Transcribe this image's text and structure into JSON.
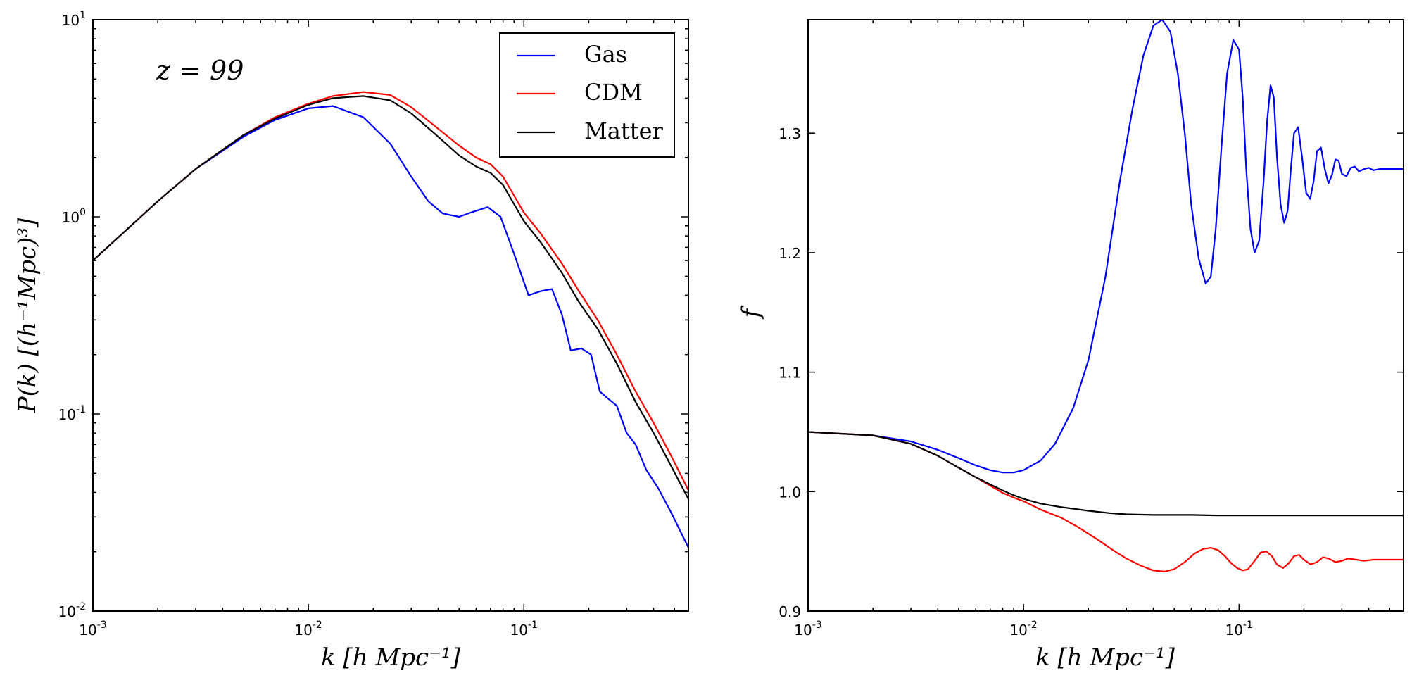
{
  "chart_data": [
    {
      "type": "line",
      "xscale": "log",
      "yscale": "log",
      "xlim": [
        0.001,
        0.58
      ],
      "ylim": [
        0.01,
        10
      ],
      "xlabel": "k [h Mpc⁻¹]",
      "ylabel": "P(k) [(h⁻¹Mpc)³]",
      "annotation": "z = 99",
      "legend_position": "upper right",
      "xticks": [
        0.001,
        0.01,
        0.1
      ],
      "yticks": [
        0.01,
        0.1,
        1,
        10
      ],
      "xtick_labels": [
        {
          "base": "10",
          "exp": "-3"
        },
        {
          "base": "10",
          "exp": "-2"
        },
        {
          "base": "10",
          "exp": "-1"
        }
      ],
      "ytick_labels": [
        {
          "base": "10",
          "exp": "-2"
        },
        {
          "base": "10",
          "exp": "-1"
        },
        {
          "base": "10",
          "exp": "0"
        },
        {
          "base": "10",
          "exp": "1"
        }
      ],
      "series": [
        {
          "name": "Gas",
          "color": "#0000ff",
          "x": [
            0.001,
            0.002,
            0.003,
            0.005,
            0.007,
            0.01,
            0.013,
            0.018,
            0.024,
            0.03,
            0.036,
            0.042,
            0.05,
            0.058,
            0.068,
            0.078,
            0.09,
            0.105,
            0.12,
            0.135,
            0.15,
            0.165,
            0.185,
            0.205,
            0.225,
            0.245,
            0.27,
            0.3,
            0.33,
            0.37,
            0.42,
            0.48,
            0.58
          ],
          "y": [
            0.6,
            1.2,
            1.75,
            2.55,
            3.1,
            3.55,
            3.65,
            3.2,
            2.35,
            1.6,
            1.2,
            1.04,
            1.0,
            1.06,
            1.12,
            1.0,
            0.65,
            0.4,
            0.42,
            0.43,
            0.32,
            0.21,
            0.215,
            0.2,
            0.13,
            0.12,
            0.11,
            0.08,
            0.07,
            0.052,
            0.042,
            0.032,
            0.021
          ]
        },
        {
          "name": "CDM",
          "color": "#ff0000",
          "x": [
            0.001,
            0.002,
            0.003,
            0.005,
            0.007,
            0.01,
            0.013,
            0.018,
            0.024,
            0.03,
            0.04,
            0.05,
            0.06,
            0.07,
            0.08,
            0.1,
            0.12,
            0.15,
            0.18,
            0.22,
            0.27,
            0.33,
            0.4,
            0.48,
            0.58
          ],
          "y": [
            0.6,
            1.2,
            1.75,
            2.6,
            3.2,
            3.75,
            4.1,
            4.3,
            4.15,
            3.6,
            2.8,
            2.3,
            2.0,
            1.85,
            1.6,
            1.05,
            0.82,
            0.58,
            0.42,
            0.3,
            0.2,
            0.13,
            0.09,
            0.062,
            0.041
          ]
        },
        {
          "name": "Matter",
          "color": "#000000",
          "x": [
            0.001,
            0.002,
            0.003,
            0.005,
            0.007,
            0.01,
            0.013,
            0.018,
            0.024,
            0.03,
            0.04,
            0.05,
            0.06,
            0.07,
            0.08,
            0.1,
            0.12,
            0.15,
            0.18,
            0.22,
            0.27,
            0.33,
            0.4,
            0.48,
            0.58
          ],
          "y": [
            0.6,
            1.2,
            1.75,
            2.6,
            3.15,
            3.7,
            4.0,
            4.1,
            3.9,
            3.35,
            2.55,
            2.05,
            1.8,
            1.67,
            1.45,
            0.95,
            0.74,
            0.52,
            0.37,
            0.27,
            0.18,
            0.115,
            0.08,
            0.055,
            0.037
          ]
        }
      ]
    },
    {
      "type": "line",
      "xscale": "log",
      "yscale": "linear",
      "xlim": [
        0.001,
        0.58
      ],
      "ylim": [
        0.9,
        1.395
      ],
      "xlabel": "k [h Mpc⁻¹]",
      "ylabel": "f",
      "xticks": [
        0.001,
        0.01,
        0.1
      ],
      "xtick_labels": [
        {
          "base": "10",
          "exp": "-3"
        },
        {
          "base": "10",
          "exp": "-2"
        },
        {
          "base": "10",
          "exp": "-1"
        }
      ],
      "yticks": [
        0.9,
        1.0,
        1.1,
        1.2,
        1.3
      ],
      "ytick_labels": [
        "0.9",
        "1.0",
        "1.1",
        "1.2",
        "1.3"
      ],
      "series": [
        {
          "name": "Gas",
          "color": "#0000ff",
          "x": [
            0.001,
            0.002,
            0.003,
            0.004,
            0.005,
            0.006,
            0.007,
            0.008,
            0.009,
            0.01,
            0.012,
            0.014,
            0.017,
            0.02,
            0.024,
            0.028,
            0.032,
            0.036,
            0.04,
            0.044,
            0.048,
            0.052,
            0.056,
            0.06,
            0.065,
            0.07,
            0.074,
            0.078,
            0.083,
            0.088,
            0.094,
            0.1,
            0.104,
            0.108,
            0.113,
            0.118,
            0.124,
            0.13,
            0.135,
            0.14,
            0.145,
            0.15,
            0.156,
            0.162,
            0.168,
            0.174,
            0.18,
            0.188,
            0.196,
            0.205,
            0.214,
            0.222,
            0.23,
            0.24,
            0.25,
            0.26,
            0.27,
            0.28,
            0.29,
            0.3,
            0.315,
            0.33,
            0.345,
            0.36,
            0.38,
            0.4,
            0.42,
            0.45,
            0.48,
            0.52,
            0.55,
            0.58
          ],
          "y": [
            1.05,
            1.047,
            1.042,
            1.035,
            1.028,
            1.022,
            1.018,
            1.016,
            1.016,
            1.018,
            1.026,
            1.04,
            1.07,
            1.11,
            1.18,
            1.26,
            1.32,
            1.365,
            1.39,
            1.395,
            1.385,
            1.35,
            1.3,
            1.24,
            1.195,
            1.174,
            1.18,
            1.22,
            1.29,
            1.35,
            1.378,
            1.37,
            1.33,
            1.27,
            1.22,
            1.2,
            1.21,
            1.26,
            1.31,
            1.34,
            1.33,
            1.28,
            1.24,
            1.225,
            1.235,
            1.27,
            1.3,
            1.305,
            1.28,
            1.25,
            1.245,
            1.26,
            1.285,
            1.288,
            1.27,
            1.258,
            1.265,
            1.278,
            1.277,
            1.266,
            1.264,
            1.271,
            1.272,
            1.268,
            1.27,
            1.271,
            1.269,
            1.27,
            1.27,
            1.27,
            1.27,
            1.27
          ]
        },
        {
          "name": "CDM",
          "color": "#ff0000",
          "x": [
            0.001,
            0.002,
            0.003,
            0.004,
            0.005,
            0.006,
            0.007,
            0.008,
            0.009,
            0.01,
            0.012,
            0.015,
            0.018,
            0.022,
            0.026,
            0.03,
            0.035,
            0.04,
            0.045,
            0.05,
            0.056,
            0.062,
            0.068,
            0.074,
            0.08,
            0.086,
            0.092,
            0.098,
            0.104,
            0.11,
            0.118,
            0.126,
            0.134,
            0.142,
            0.15,
            0.16,
            0.17,
            0.18,
            0.19,
            0.2,
            0.215,
            0.23,
            0.245,
            0.26,
            0.28,
            0.3,
            0.32,
            0.35,
            0.38,
            0.42,
            0.46,
            0.5,
            0.58
          ],
          "y": [
            1.05,
            1.047,
            1.04,
            1.03,
            1.02,
            1.012,
            1.005,
            0.999,
            0.995,
            0.992,
            0.985,
            0.978,
            0.97,
            0.96,
            0.951,
            0.944,
            0.938,
            0.934,
            0.933,
            0.935,
            0.941,
            0.948,
            0.952,
            0.953,
            0.951,
            0.946,
            0.94,
            0.936,
            0.934,
            0.935,
            0.942,
            0.949,
            0.95,
            0.946,
            0.939,
            0.936,
            0.94,
            0.946,
            0.947,
            0.943,
            0.939,
            0.941,
            0.945,
            0.944,
            0.941,
            0.942,
            0.944,
            0.943,
            0.942,
            0.943,
            0.943,
            0.943,
            0.943
          ]
        },
        {
          "name": "Matter",
          "color": "#000000",
          "x": [
            0.001,
            0.002,
            0.003,
            0.004,
            0.005,
            0.006,
            0.007,
            0.008,
            0.009,
            0.01,
            0.012,
            0.015,
            0.02,
            0.025,
            0.03,
            0.04,
            0.06,
            0.08,
            0.1,
            0.15,
            0.2,
            0.3,
            0.4,
            0.58
          ],
          "y": [
            1.05,
            1.047,
            1.04,
            1.03,
            1.02,
            1.012,
            1.006,
            1.001,
            0.997,
            0.994,
            0.99,
            0.987,
            0.984,
            0.982,
            0.981,
            0.9805,
            0.9805,
            0.98,
            0.98,
            0.98,
            0.98,
            0.98,
            0.98,
            0.98
          ]
        }
      ]
    }
  ]
}
